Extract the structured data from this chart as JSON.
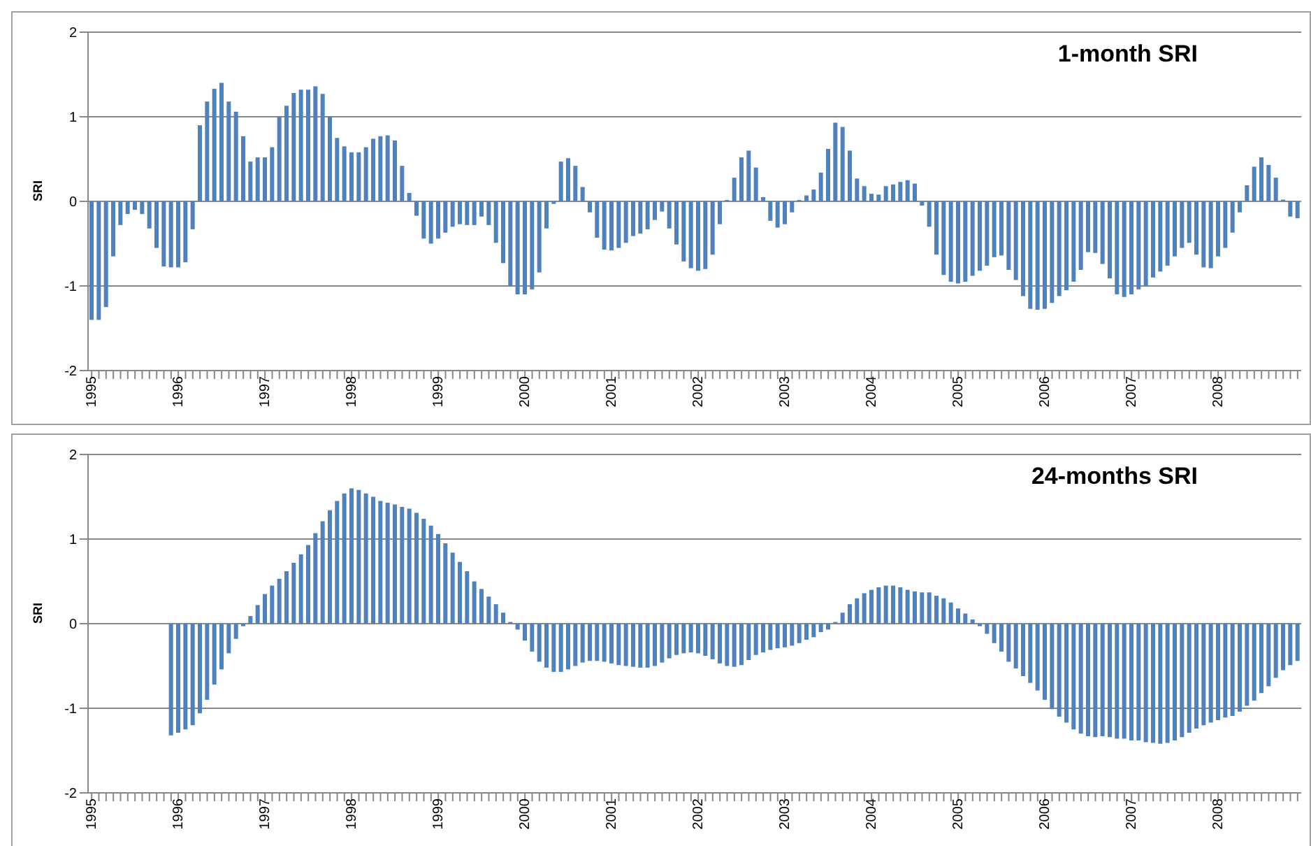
{
  "chart_data": [
    {
      "type": "bar",
      "title": "1-month SRI",
      "ylabel": "SRI",
      "color": "#4f81bd",
      "ylim": [
        -2,
        2
      ],
      "yticks": [
        -2,
        -1,
        0,
        1,
        2
      ],
      "grid": "y",
      "categories": [
        "1995",
        null,
        null,
        null,
        null,
        null,
        null,
        null,
        null,
        null,
        null,
        null,
        "1996",
        null,
        null,
        null,
        null,
        null,
        null,
        null,
        null,
        null,
        null,
        null,
        "1997",
        null,
        null,
        null,
        null,
        null,
        null,
        null,
        null,
        null,
        null,
        null,
        "1998",
        null,
        null,
        null,
        null,
        null,
        null,
        null,
        null,
        null,
        null,
        null,
        "1999",
        null,
        null,
        null,
        null,
        null,
        null,
        null,
        null,
        null,
        null,
        null,
        "2000",
        null,
        null,
        null,
        null,
        null,
        null,
        null,
        null,
        null,
        null,
        null,
        "2001",
        null,
        null,
        null,
        null,
        null,
        null,
        null,
        null,
        null,
        null,
        null,
        "2002",
        null,
        null,
        null,
        null,
        null,
        null,
        null,
        null,
        null,
        null,
        null,
        "2003",
        null,
        null,
        null,
        null,
        null,
        null,
        null,
        null,
        null,
        null,
        null,
        "2004",
        null,
        null,
        null,
        null,
        null,
        null,
        null,
        null,
        null,
        null,
        null,
        "2005",
        null,
        null,
        null,
        null,
        null,
        null,
        null,
        null,
        null,
        null,
        null,
        "2006",
        null,
        null,
        null,
        null,
        null,
        null,
        null,
        null,
        null,
        null,
        null,
        "2007",
        null,
        null,
        null,
        null,
        null,
        null,
        null,
        null,
        null,
        null,
        null,
        "2008",
        null,
        null,
        null,
        null,
        null,
        null,
        null,
        null,
        null,
        null,
        null
      ],
      "values": [
        -1.4,
        -1.4,
        -1.25,
        -0.65,
        -0.28,
        -0.15,
        -0.1,
        -0.15,
        -0.32,
        -0.55,
        -0.77,
        -0.78,
        -0.78,
        -0.72,
        -0.33,
        0.9,
        1.18,
        1.33,
        1.4,
        1.18,
        1.06,
        0.77,
        0.47,
        0.52,
        0.52,
        0.64,
        1.0,
        1.13,
        1.28,
        1.32,
        1.32,
        1.36,
        1.27,
        1.0,
        0.75,
        0.65,
        0.58,
        0.58,
        0.64,
        0.74,
        0.77,
        0.78,
        0.72,
        0.42,
        0.1,
        -0.17,
        -0.44,
        -0.5,
        -0.44,
        -0.37,
        -0.3,
        -0.27,
        -0.28,
        -0.28,
        -0.18,
        -0.28,
        -0.49,
        -0.73,
        -1.0,
        -1.1,
        -1.1,
        -1.04,
        -0.84,
        -0.32,
        -0.03,
        0.47,
        0.51,
        0.42,
        0.17,
        -0.13,
        -0.43,
        -0.57,
        -0.58,
        -0.55,
        -0.49,
        -0.41,
        -0.38,
        -0.33,
        -0.22,
        -0.12,
        -0.32,
        -0.51,
        -0.71,
        -0.79,
        -0.82,
        -0.8,
        -0.63,
        -0.27,
        0,
        0.28,
        0.52,
        0.6,
        0.4,
        0.05,
        -0.23,
        -0.31,
        -0.27,
        -0.13,
        0,
        0.07,
        0.14,
        0.34,
        0.62,
        0.93,
        0.88,
        0.6,
        0.27,
        0.18,
        0.09,
        0.08,
        0.18,
        0.2,
        0.23,
        0.25,
        0.21,
        -0.05,
        -0.3,
        -0.63,
        -0.87,
        -0.95,
        -0.97,
        -0.95,
        -0.88,
        -0.82,
        -0.76,
        -0.66,
        -0.64,
        -0.81,
        -0.93,
        -1.12,
        -1.27,
        -1.28,
        -1.27,
        -1.2,
        -1.12,
        -1.05,
        -0.95,
        -0.81,
        -0.6,
        -0.61,
        -0.74,
        -0.91,
        -1.1,
        -1.13,
        -1.1,
        -1.04,
        -1.0,
        -0.9,
        -0.83,
        -0.76,
        -0.65,
        -0.55,
        -0.49,
        -0.63,
        -0.78,
        -0.79,
        -0.65,
        -0.55,
        -0.37,
        -0.13,
        0.19,
        0.41,
        0.52,
        0.43,
        0.28,
        0.02,
        -0.18,
        -0.2
      ]
    },
    {
      "type": "bar",
      "title": "24-months SRI",
      "ylabel": "SRI",
      "color": "#4f81bd",
      "ylim": [
        -2,
        2
      ],
      "yticks": [
        -2,
        -1,
        0,
        1,
        2
      ],
      "grid": "y",
      "categories": [
        "1995",
        null,
        null,
        null,
        null,
        null,
        null,
        null,
        null,
        null,
        null,
        null,
        "1996",
        null,
        null,
        null,
        null,
        null,
        null,
        null,
        null,
        null,
        null,
        null,
        "1997",
        null,
        null,
        null,
        null,
        null,
        null,
        null,
        null,
        null,
        null,
        null,
        "1998",
        null,
        null,
        null,
        null,
        null,
        null,
        null,
        null,
        null,
        null,
        null,
        "1999",
        null,
        null,
        null,
        null,
        null,
        null,
        null,
        null,
        null,
        null,
        null,
        "2000",
        null,
        null,
        null,
        null,
        null,
        null,
        null,
        null,
        null,
        null,
        null,
        "2001",
        null,
        null,
        null,
        null,
        null,
        null,
        null,
        null,
        null,
        null,
        null,
        "2002",
        null,
        null,
        null,
        null,
        null,
        null,
        null,
        null,
        null,
        null,
        null,
        "2003",
        null,
        null,
        null,
        null,
        null,
        null,
        null,
        null,
        null,
        null,
        null,
        "2004",
        null,
        null,
        null,
        null,
        null,
        null,
        null,
        null,
        null,
        null,
        null,
        "2005",
        null,
        null,
        null,
        null,
        null,
        null,
        null,
        null,
        null,
        null,
        null,
        "2006",
        null,
        null,
        null,
        null,
        null,
        null,
        null,
        null,
        null,
        null,
        null,
        "2007",
        null,
        null,
        null,
        null,
        null,
        null,
        null,
        null,
        null,
        null,
        null,
        "2008",
        null,
        null,
        null,
        null,
        null,
        null,
        null,
        null,
        null,
        null,
        null
      ],
      "values": [
        null,
        null,
        null,
        null,
        null,
        null,
        null,
        null,
        null,
        null,
        null,
        -1.32,
        -1.29,
        -1.25,
        -1.2,
        -1.06,
        -0.9,
        -0.72,
        -0.54,
        -0.35,
        -0.18,
        -0.03,
        0.09,
        0.22,
        0.35,
        0.45,
        0.53,
        0.62,
        0.72,
        0.82,
        0.93,
        1.07,
        1.21,
        1.34,
        1.45,
        1.54,
        1.6,
        1.58,
        1.54,
        1.5,
        1.45,
        1.43,
        1.41,
        1.38,
        1.36,
        1.31,
        1.24,
        1.16,
        1.06,
        0.95,
        0.84,
        0.73,
        0.62,
        0.5,
        0.41,
        0.32,
        0.23,
        0.13,
        0.02,
        -0.07,
        -0.2,
        -0.33,
        -0.45,
        -0.52,
        -0.57,
        -0.57,
        -0.54,
        -0.5,
        -0.46,
        -0.44,
        -0.44,
        -0.45,
        -0.47,
        -0.49,
        -0.5,
        -0.51,
        -0.52,
        -0.52,
        -0.5,
        -0.46,
        -0.41,
        -0.37,
        -0.35,
        -0.34,
        -0.35,
        -0.38,
        -0.42,
        -0.47,
        -0.5,
        -0.51,
        -0.49,
        -0.43,
        -0.37,
        -0.34,
        -0.31,
        -0.29,
        -0.28,
        -0.26,
        -0.23,
        -0.19,
        -0.16,
        -0.1,
        -0.07,
        0.02,
        0.13,
        0.23,
        0.3,
        0.36,
        0.4,
        0.43,
        0.45,
        0.45,
        0.43,
        0.4,
        0.38,
        0.37,
        0.37,
        0.33,
        0.3,
        0.25,
        0.18,
        0.12,
        0.05,
        -0.03,
        -0.12,
        -0.23,
        -0.33,
        -0.45,
        -0.53,
        -0.62,
        -0.7,
        -0.79,
        -0.9,
        -1.01,
        -1.1,
        -1.17,
        -1.25,
        -1.3,
        -1.33,
        -1.34,
        -1.33,
        -1.34,
        -1.36,
        -1.36,
        -1.38,
        -1.38,
        -1.4,
        -1.41,
        -1.42,
        -1.41,
        -1.38,
        -1.34,
        -1.29,
        -1.24,
        -1.2,
        -1.17,
        -1.14,
        -1.11,
        -1.09,
        -1.04,
        -0.97,
        -0.91,
        -0.82,
        -0.74,
        -0.64,
        -0.55,
        -0.49,
        -0.44
      ]
    }
  ]
}
